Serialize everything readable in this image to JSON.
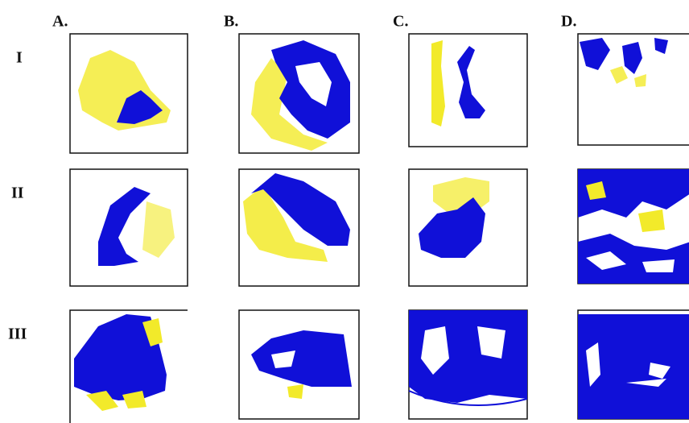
{
  "column_labels": [
    "A.",
    "B.",
    "C.",
    "D."
  ],
  "row_labels": [
    "I",
    "II",
    "III"
  ]
}
